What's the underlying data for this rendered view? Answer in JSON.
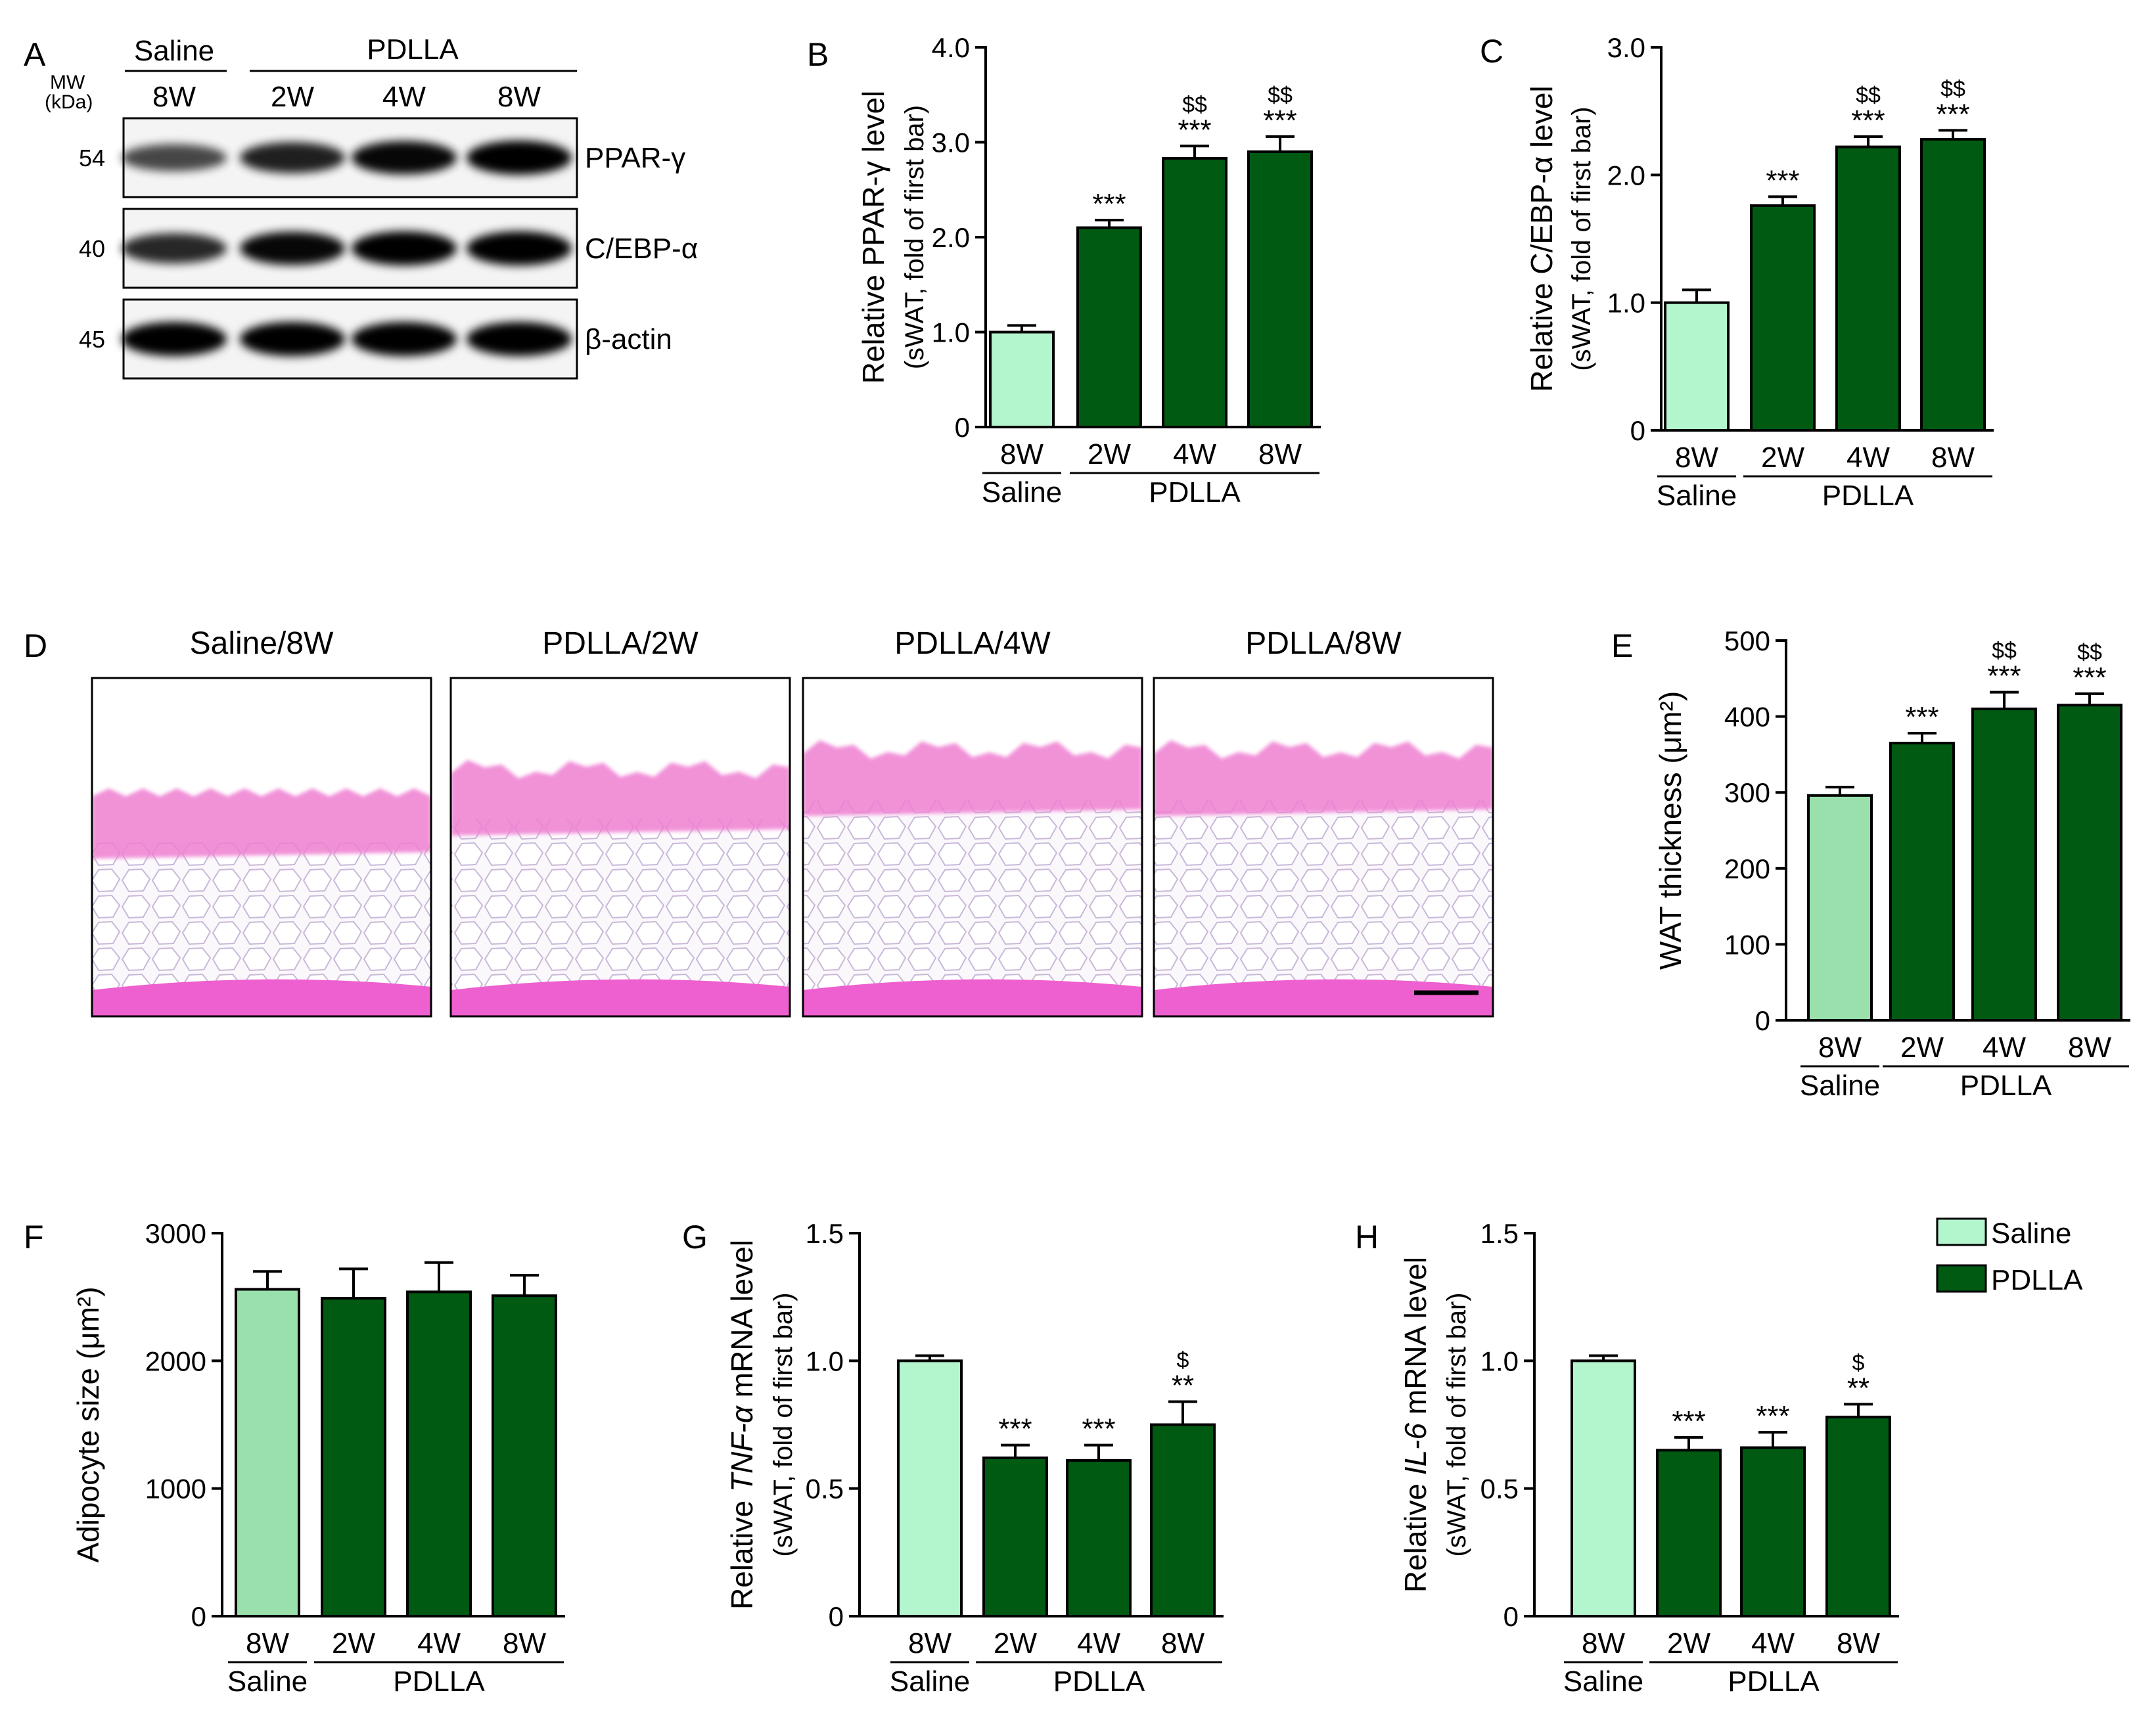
{
  "colors": {
    "saline": "#b3f5cc",
    "saline_alt": "#99e0ad",
    "pdlla": "#005a12",
    "axis": "#000000",
    "he_pink": "#ef7fd1"
  },
  "panel_a": {
    "letter": "A",
    "mw_label": "MW",
    "kda_label": "(kDa)",
    "group_saline": "Saline",
    "group_pdlla": "PDLLA",
    "lanes": [
      "8W",
      "2W",
      "4W",
      "8W"
    ],
    "bands": [
      {
        "mw": "54",
        "name": "PPAR-γ",
        "intensity": [
          0.55,
          0.8,
          0.95,
          1.0
        ]
      },
      {
        "mw": "40",
        "name": "C/EBP-α",
        "intensity": [
          0.75,
          0.95,
          1.0,
          1.0
        ]
      },
      {
        "mw": "45",
        "name": "β-actin",
        "intensity": [
          1.0,
          1.0,
          1.0,
          1.0
        ]
      }
    ]
  },
  "panel_d": {
    "letter": "D",
    "images": [
      "Saline/8W",
      "PDLLA/2W",
      "PDLLA/4W",
      "PDLLA/8W"
    ]
  },
  "legend": {
    "saline": "Saline",
    "pdlla": "PDLLA"
  },
  "chart_data": [
    {
      "type": "bar",
      "id": "B",
      "letter": "B",
      "categories": [
        "8W",
        "2W",
        "4W",
        "8W"
      ],
      "values": [
        1.0,
        2.1,
        2.83,
        2.9
      ],
      "errors": [
        0.07,
        0.08,
        0.13,
        0.16
      ],
      "stars": [
        "",
        "***",
        "***",
        "***"
      ],
      "dollars": [
        "",
        "",
        "$$",
        "$$"
      ],
      "ylabel": "Relative PPAR-γ level",
      "ylabel2": "(sWAT, fold of first bar)",
      "ylim": [
        0,
        4.0
      ],
      "yticks": [
        0,
        1.0,
        2.0,
        3.0,
        4.0
      ],
      "ytick_labels": [
        "0",
        "1.0",
        "2.0",
        "3.0",
        "4.0"
      ],
      "group_saline": "Saline",
      "group_pdlla": "PDLLA",
      "first_color": "saline"
    },
    {
      "type": "bar",
      "id": "C",
      "letter": "C",
      "categories": [
        "8W",
        "2W",
        "4W",
        "8W"
      ],
      "values": [
        1.0,
        1.76,
        2.22,
        2.28
      ],
      "errors": [
        0.1,
        0.07,
        0.08,
        0.07
      ],
      "stars": [
        "",
        "***",
        "***",
        "***"
      ],
      "dollars": [
        "",
        "",
        "$$",
        "$$"
      ],
      "ylabel": "Relative C/EBP-α level",
      "ylabel2": "(sWAT, fold of first bar)",
      "ylim": [
        0,
        3.0
      ],
      "yticks": [
        0,
        1.0,
        2.0,
        3.0
      ],
      "ytick_labels": [
        "0",
        "1.0",
        "2.0",
        "3.0"
      ],
      "group_saline": "Saline",
      "group_pdlla": "PDLLA",
      "first_color": "saline"
    },
    {
      "type": "bar",
      "id": "E",
      "letter": "E",
      "categories": [
        "8W",
        "2W",
        "4W",
        "8W"
      ],
      "values": [
        296,
        365,
        410,
        415
      ],
      "errors": [
        11,
        13,
        22,
        15
      ],
      "stars": [
        "",
        "***",
        "***",
        "***"
      ],
      "dollars": [
        "",
        "",
        "$$",
        "$$"
      ],
      "ylabel": "WAT thickness (μm²)",
      "ylabel2": "",
      "ylim": [
        0,
        500
      ],
      "yticks": [
        0,
        100,
        200,
        300,
        400,
        500
      ],
      "ytick_labels": [
        "0",
        "100",
        "200",
        "300",
        "400",
        "500"
      ],
      "group_saline": "Saline",
      "group_pdlla": "PDLLA",
      "first_color": "saline_alt"
    },
    {
      "type": "bar",
      "id": "F",
      "letter": "F",
      "categories": [
        "8W",
        "2W",
        "4W",
        "8W"
      ],
      "values": [
        2560,
        2490,
        2540,
        2510
      ],
      "errors": [
        140,
        230,
        230,
        160
      ],
      "stars": [
        "",
        "",
        "",
        ""
      ],
      "dollars": [
        "",
        "",
        "",
        ""
      ],
      "ylabel": "Adipocyte size (μm²)",
      "ylabel2": "",
      "ylim": [
        0,
        3000
      ],
      "yticks": [
        0,
        1000,
        2000,
        3000
      ],
      "ytick_labels": [
        "0",
        "1000",
        "2000",
        "3000"
      ],
      "group_saline": "Saline",
      "group_pdlla": "PDLLA",
      "first_color": "saline_alt"
    },
    {
      "type": "bar",
      "id": "G",
      "letter": "G",
      "categories": [
        "8W",
        "2W",
        "4W",
        "8W"
      ],
      "values": [
        1.0,
        0.62,
        0.61,
        0.75
      ],
      "errors": [
        0.02,
        0.05,
        0.06,
        0.09
      ],
      "stars": [
        "",
        "***",
        "***",
        "**"
      ],
      "dollars": [
        "",
        "",
        "",
        "$"
      ],
      "ylabel_pre": "Relative ",
      "ylabel_it": "TNF-α",
      "ylabel_post": " mRNA level",
      "ylabel2": "(sWAT, fold of first bar)",
      "ylim": [
        0,
        1.5
      ],
      "yticks": [
        0,
        0.5,
        1.0,
        1.5
      ],
      "ytick_labels": [
        "0",
        "0.5",
        "1.0",
        "1.5"
      ],
      "group_saline": "Saline",
      "group_pdlla": "PDLLA",
      "first_color": "saline"
    },
    {
      "type": "bar",
      "id": "H",
      "letter": "H",
      "categories": [
        "8W",
        "2W",
        "4W",
        "8W"
      ],
      "values": [
        1.0,
        0.65,
        0.66,
        0.78
      ],
      "errors": [
        0.02,
        0.05,
        0.06,
        0.05
      ],
      "stars": [
        "",
        "***",
        "***",
        "**"
      ],
      "dollars": [
        "",
        "",
        "",
        "$"
      ],
      "ylabel_pre": "Relative ",
      "ylabel_it": "IL-6",
      "ylabel_post": " mRNA level",
      "ylabel2": "(sWAT, fold of first bar)",
      "ylim": [
        0,
        1.5
      ],
      "yticks": [
        0,
        0.5,
        1.0,
        1.5
      ],
      "ytick_labels": [
        "0",
        "0.5",
        "1.0",
        "1.5"
      ],
      "group_saline": "Saline",
      "group_pdlla": "PDLLA",
      "first_color": "saline"
    }
  ]
}
